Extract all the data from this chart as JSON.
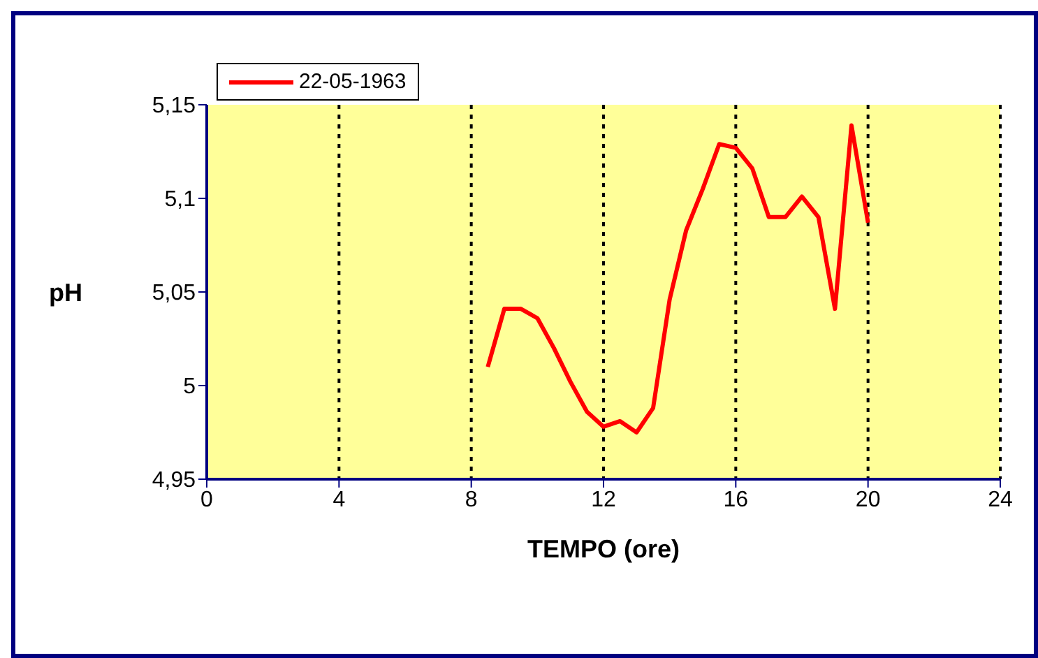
{
  "chart_data": {
    "type": "line",
    "xlabel": "TEMPO (ore)",
    "ylabel": "pH",
    "x": [
      8.5,
      9,
      9.5,
      10,
      10.5,
      11,
      11.5,
      12,
      12.5,
      13,
      13.5,
      14,
      14.5,
      15,
      15.5,
      16,
      16.5,
      17,
      17.5,
      18,
      18.5,
      19,
      19.5,
      20
    ],
    "series": [
      {
        "name": "22-05-1963",
        "color": "#ff0000",
        "values": [
          5.01,
          5.041,
          5.041,
          5.036,
          5.02,
          5.002,
          4.986,
          4.978,
          4.981,
          4.975,
          4.988,
          5.046,
          5.083,
          5.105,
          5.129,
          5.127,
          5.116,
          5.09,
          5.09,
          5.101,
          5.09,
          5.041,
          5.139,
          5.087
        ]
      }
    ],
    "xlim": [
      0,
      24
    ],
    "xticks": [
      0,
      4,
      8,
      12,
      16,
      20,
      24
    ],
    "ylim": [
      4.95,
      5.15
    ],
    "yticks": [
      {
        "value": 4.95,
        "label": "4,95"
      },
      {
        "value": 5,
        "label": "5"
      },
      {
        "value": 5.05,
        "label": "5,05"
      },
      {
        "value": 5.1,
        "label": "5,1"
      },
      {
        "value": 5.15,
        "label": "5,15"
      }
    ],
    "grid": "x",
    "legend": "top left",
    "marker": "none",
    "line_style": "solid"
  }
}
